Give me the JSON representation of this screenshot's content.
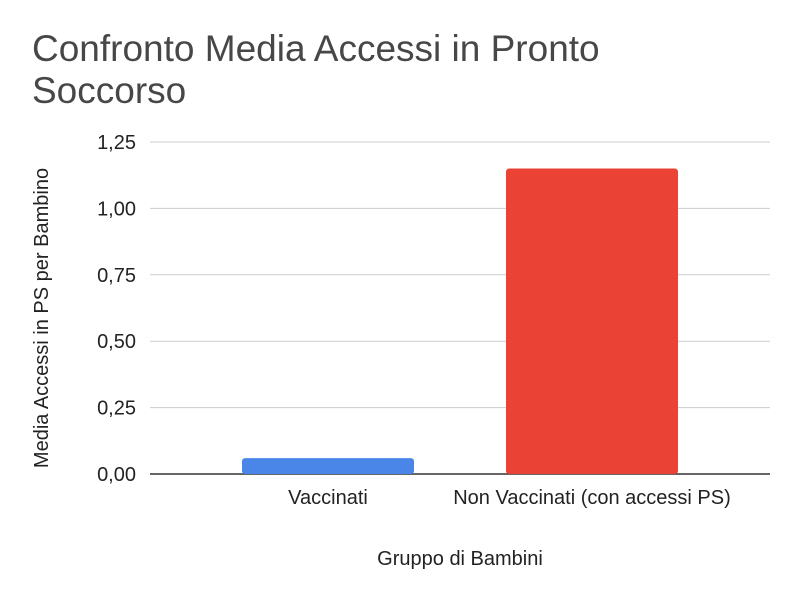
{
  "chart_data": {
    "type": "bar",
    "title": "Confronto Media Accessi in Pronto Soccorso",
    "xlabel": "Gruppo di Bambini",
    "ylabel": "Media Accessi in PS per Bambino",
    "categories": [
      "Vaccinati",
      "Non Vaccinati (con accessi PS)"
    ],
    "values": [
      0.06,
      1.15
    ],
    "colors": [
      "#4a86e8",
      "#ea4335"
    ],
    "ylim": [
      0,
      1.25
    ],
    "yticks": [
      "0,00",
      "0,25",
      "0,50",
      "0,75",
      "1,00",
      "1,25"
    ],
    "ytick_values": [
      0,
      0.25,
      0.5,
      0.75,
      1.0,
      1.25
    ],
    "grid": true,
    "legend": "none"
  }
}
